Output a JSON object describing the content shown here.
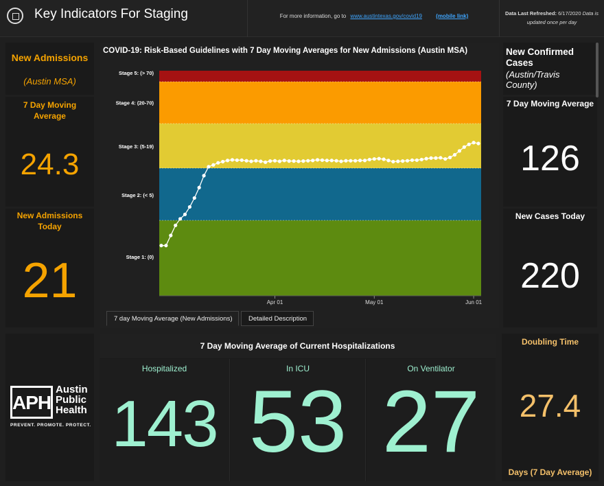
{
  "header": {
    "title": "Key Indicators For Staging",
    "info_prefix": "For more information, go to",
    "info_link": "www.austintexas.gov/covid19",
    "mobile_link": "(mobile link)",
    "refresh_label": "Data Last Refreshed:",
    "refresh_date": "6/17/2020",
    "refresh_note_1": "Data is",
    "refresh_note_2": "updated once per day"
  },
  "admissions": {
    "title": "New Admissions",
    "subtitle": "(Austin MSA)",
    "avg_label_1": "7 Day Moving",
    "avg_label_2": "Average",
    "avg_value": "24.3",
    "today_label_1": "New Admissions",
    "today_label_2": "Today",
    "today_value": "21"
  },
  "chart_data": {
    "type": "line",
    "title": "COVID-19: Risk-Based Guidelines with 7 Day Moving Averages for New Admissions (Austin MSA)",
    "x_ticks": [
      "Apr 01",
      "May 01",
      "Jun 01"
    ],
    "bands": [
      {
        "label": "Stage 5: (> 70)",
        "from": 70,
        "to": 80,
        "color": "#a51212"
      },
      {
        "label": "Stage 4: (20-70)",
        "from": 20,
        "to": 70,
        "color": "#fb9b00"
      },
      {
        "label": "Stage 3: (5-19)",
        "from": 5,
        "to": 20,
        "color": "#e2cb33"
      },
      {
        "label": "Stage 2: (< 5)",
        "from": 1.5,
        "to": 5,
        "color": "#11688d"
      },
      {
        "label": "Stage 1: (0)",
        "from": 0,
        "to": 1.5,
        "color": "#5d8b10"
      }
    ],
    "series": [
      {
        "color": "#ffffff",
        "values": [
          1.0,
          1.0,
          1.2,
          1.4,
          1.6,
          1.9,
          2.4,
          3.0,
          3.7,
          4.5,
          5.5,
          6.1,
          6.8,
          7.2,
          7.6,
          7.8,
          7.7,
          7.7,
          7.5,
          7.3,
          7.5,
          7.3,
          7.0,
          7.4,
          7.5,
          7.3,
          7.6,
          7.4,
          7.4,
          7.3,
          7.4,
          7.5,
          7.6,
          7.8,
          7.7,
          7.6,
          7.6,
          7.5,
          7.3,
          7.5,
          7.5,
          7.5,
          7.6,
          7.6,
          7.9,
          8.1,
          8.2,
          8.0,
          7.6,
          7.2,
          7.3,
          7.4,
          7.5,
          7.7,
          7.7,
          7.9,
          8.2,
          8.4,
          8.4,
          8.5,
          8.1,
          8.6,
          9.5,
          10.8,
          12.1,
          13.0,
          13.6,
          13.3
        ]
      }
    ]
  },
  "tabs": [
    "7 day Moving Average (New Admissions)",
    "Detailed Description"
  ],
  "cases": {
    "title_1": "New Confirmed",
    "title_2": "Cases",
    "subtitle_1": "(Austin/Travis",
    "subtitle_2": "County)",
    "avg_label": "7 Day Moving Average",
    "avg_value": "126",
    "today_label": "New Cases Today",
    "today_value": "220"
  },
  "aph": {
    "monogram": "APH",
    "line1": "Austin",
    "line2": "Public",
    "line3": "Health",
    "tagline": "PREVENT. PROMOTE. PROTECT."
  },
  "hospitalizations": {
    "title": "7 Day Moving Average of Current Hospitalizations",
    "hospitalized_label": "Hospitalized",
    "hospitalized_value": "143",
    "icu_label": "In ICU",
    "icu_value": "53",
    "vent_label": "On Ventilator",
    "vent_value": "27"
  },
  "doubling": {
    "title": "Doubling Time",
    "value": "27.4",
    "footer": "Days (7 Day Average)"
  },
  "colors": {
    "accent_orange": "#f5a300",
    "mint": "#9ef0d0",
    "peach": "#f4c06a"
  }
}
